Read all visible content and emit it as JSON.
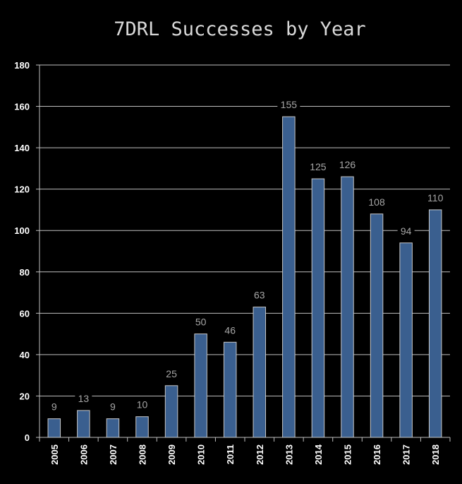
{
  "chart_data": {
    "type": "bar",
    "title": "7DRL Successes by Year",
    "xlabel": "",
    "ylabel": "",
    "categories": [
      "2005",
      "2006",
      "2007",
      "2008",
      "2009",
      "2010",
      "2011",
      "2012",
      "2013",
      "2014",
      "2015",
      "2016",
      "2017",
      "2018"
    ],
    "values": [
      9,
      13,
      9,
      10,
      25,
      50,
      46,
      63,
      155,
      125,
      126,
      108,
      94,
      110
    ],
    "ylim": [
      0,
      180
    ],
    "yticks": [
      0,
      20,
      40,
      60,
      80,
      100,
      120,
      140,
      160,
      180
    ],
    "grid": true,
    "legend": "none",
    "data_labels": true,
    "colors": {
      "background": "#000000",
      "bar": "#3a5f8f",
      "bar_edge": "#c8c8c8",
      "gridline": "#bfbfbf",
      "axis_text": "#ffffff",
      "data_label": "#a6a6a6",
      "title": "#d9d9d9"
    }
  }
}
